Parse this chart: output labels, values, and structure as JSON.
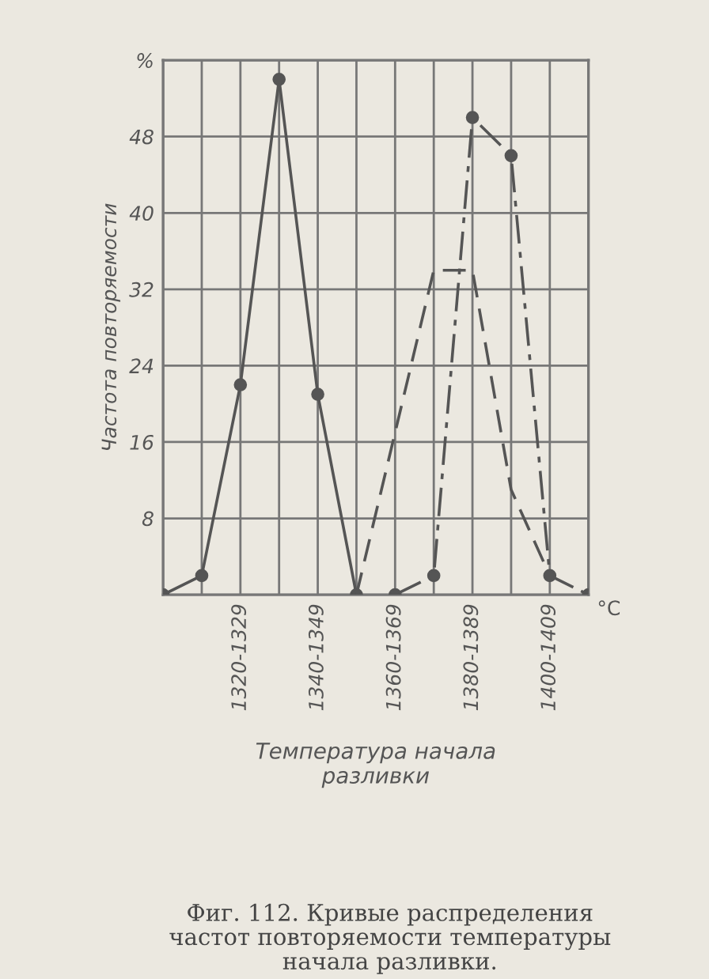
{
  "chart_data": {
    "type": "line",
    "xlabel": "Температура начала\nразливки",
    "ylabel": "Частота повторяемости",
    "annotations": [
      "°C",
      "Фиг. 112. Кривые распределения\nчастот повторяемости температуры\nначала разливки."
    ],
    "categories": [
      null,
      null,
      "1320-1329",
      null,
      "1340-1349",
      null,
      "1360-1369",
      null,
      "1380-1389",
      null,
      "1400-1409",
      null
    ],
    "series": [
      {
        "color": "#555555",
        "values": [
          0,
          2,
          22,
          54,
          21,
          0,
          null,
          null,
          null,
          null,
          null,
          null
        ],
        "marker": "circle",
        "line_style": "solid"
      },
      {
        "color": "#555555",
        "values": [
          null,
          null,
          null,
          null,
          null,
          0,
          17,
          34,
          34,
          11,
          2,
          null
        ],
        "marker": "none",
        "line_style": "dashed"
      },
      {
        "color": "#555555",
        "values": [
          null,
          null,
          null,
          null,
          null,
          null,
          0,
          2,
          50,
          46,
          2,
          0
        ],
        "marker": "circle",
        "line_style": "dotted"
      }
    ],
    "ylim": [
      0,
      56
    ],
    "yticks": [
      {
        "value": 0,
        "label": null
      },
      8,
      16,
      24,
      32,
      40,
      48,
      {
        "value": 56,
        "label": "%"
      }
    ],
    "grid": true
  }
}
